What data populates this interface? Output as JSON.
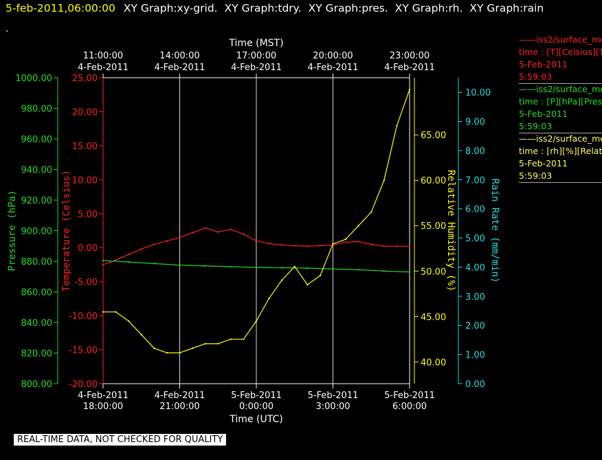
{
  "header": {
    "date": "5-feb-2011,06:00:00",
    "graphs": [
      "XY Graph:xy-grid.",
      "XY Graph:tdry.",
      "XY Graph:pres.",
      "XY Graph:rh.",
      "XY Graph:rain"
    ],
    "dot": "."
  },
  "legend": [
    {
      "line1": "iss2/surface_me",
      "line2": "time : [T][Celsius][T",
      "line3": "5-Feb-2011",
      "line4": "5:59:03",
      "color": "#ff2020"
    },
    {
      "line1": "iss2/surface_me",
      "line2": "time : [P][hPa][Pres",
      "line3": "5-Feb-2011",
      "line4": "5:59:03",
      "color": "#22dd22"
    },
    {
      "line1": "iss2/surface_me",
      "line2": "time : [rh][%][Relati",
      "line3": "5-Feb-2011",
      "line4": "5:59:03",
      "color": "#ffff55"
    }
  ],
  "footer": "REAL-TIME DATA, NOT CHECKED FOR QUALITY",
  "chart_data": {
    "type": "line",
    "x_range": [
      "4-Feb-2011 18:00:00 UTC",
      "5-Feb-2011 06:00:00 UTC"
    ],
    "grid": true,
    "bottom_axis": {
      "label": "Time (UTC)",
      "ticks": [
        {
          "date": "4-Feb-2011",
          "time": "18:00:00"
        },
        {
          "date": "4-Feb-2011",
          "time": "21:00:00"
        },
        {
          "date": "5-Feb-2011",
          "time": "0:00:00"
        },
        {
          "date": "5-Feb-2011",
          "time": "3:00:00"
        },
        {
          "date": "5-Feb-2011",
          "time": "6:00:00"
        }
      ]
    },
    "top_axis": {
      "label": "Time (MST)",
      "ticks": [
        {
          "time": "11:00:00",
          "date": "4-Feb-2011"
        },
        {
          "time": "14:00:00",
          "date": "4-Feb-2011"
        },
        {
          "time": "17:00:00",
          "date": "4-Feb-2011"
        },
        {
          "time": "20:00:00",
          "date": "4-Feb-2011"
        },
        {
          "time": "23:00:00",
          "date": "4-Feb-2011"
        }
      ]
    },
    "axes": {
      "pressure": {
        "label": "Pressure (hPa)",
        "color": "#22dd22",
        "range": [
          800,
          1000
        ],
        "ticks": [
          "800.00",
          "820.00",
          "840.00",
          "860.00",
          "880.00",
          "900.00",
          "920.00",
          "940.00",
          "960.00",
          "980.00",
          "1000.00"
        ]
      },
      "temperature": {
        "label": "Temperature (Celsius)",
        "color": "#ff2020",
        "range": [
          -20,
          25
        ],
        "ticks": [
          "-20.00",
          "-15.00",
          "-10.00",
          "-5.00",
          "0.00",
          "5.00",
          "10.00",
          "15.00",
          "20.00",
          "25.00"
        ]
      },
      "humidity": {
        "label": "Relative Humidity (%)",
        "color": "#ffff00",
        "range": [
          37.6,
          71.3
        ],
        "ticks": [
          "40.00",
          "45.00",
          "50.00",
          "55.00",
          "60.00",
          "65.00"
        ]
      },
      "rain": {
        "label": "Rain Rate (mm/min)",
        "color": "#22dddd",
        "range": [
          0,
          10.5
        ],
        "ticks": [
          "0.00",
          "1.00",
          "2.00",
          "3.00",
          "4.00",
          "5.00",
          "6.00",
          "7.00",
          "8.00",
          "9.00",
          "10.00"
        ]
      }
    },
    "series": [
      {
        "axis": "temperature",
        "color": "#ff2020",
        "x_hours": [
          0,
          0.5,
          1,
          1.5,
          2,
          2.5,
          3,
          3.5,
          4,
          4.5,
          5,
          5.5,
          6,
          6.5,
          7,
          7.5,
          8,
          8.5,
          9,
          9.5,
          10,
          10.5,
          11,
          11.5,
          12
        ],
        "values": [
          -2.5,
          -1.8,
          -1.0,
          -0.2,
          0.5,
          1.0,
          1.5,
          2.2,
          2.9,
          2.3,
          2.7,
          2.0,
          1.0,
          0.6,
          0.4,
          0.3,
          0.2,
          0.3,
          0.4,
          0.8,
          0.9,
          0.5,
          0.2,
          0.2,
          0.2
        ]
      },
      {
        "axis": "pressure",
        "color": "#22dd22",
        "x_hours": [
          0,
          1,
          2,
          3,
          4,
          5,
          6,
          7,
          8,
          9,
          10,
          11,
          12
        ],
        "values": [
          880.5,
          879.5,
          878.5,
          877.5,
          877.0,
          876.5,
          876.0,
          875.8,
          875.5,
          875.0,
          874.5,
          873.6,
          873.0
        ]
      },
      {
        "axis": "humidity",
        "color": "#ffff00",
        "x_hours": [
          0,
          0.5,
          1,
          1.5,
          2,
          2.5,
          3,
          3.5,
          4,
          4.5,
          5,
          5.5,
          6,
          6.5,
          7,
          7.5,
          8,
          8.5,
          9,
          9.5,
          10,
          10.5,
          11,
          11.5,
          12
        ],
        "values": [
          45.5,
          45.5,
          44.5,
          43.0,
          41.5,
          41.0,
          41.0,
          41.5,
          42.0,
          42.0,
          42.5,
          42.5,
          44.5,
          47.0,
          49.0,
          50.5,
          48.5,
          49.5,
          53.0,
          53.5,
          55.0,
          56.5,
          60.0,
          66.0,
          70.0
        ]
      }
    ]
  }
}
